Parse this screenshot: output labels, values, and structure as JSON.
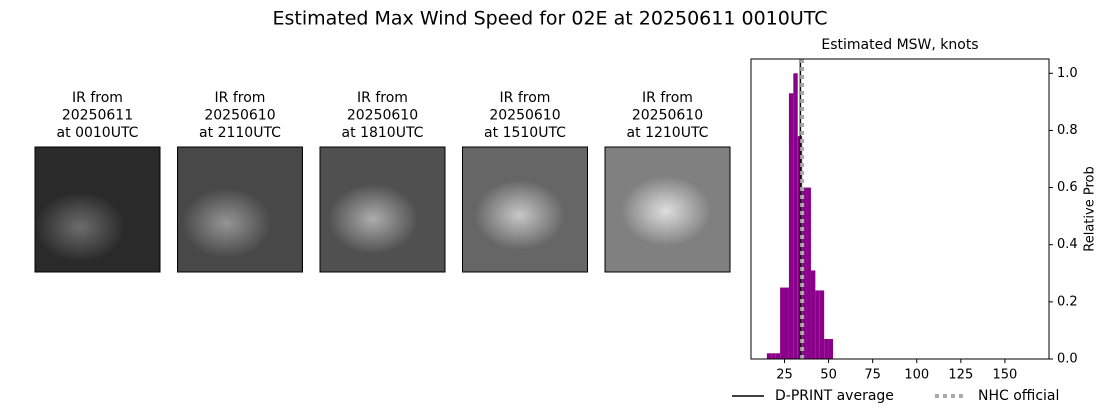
{
  "title": "Estimated Max Wind Speed for 02E at 20250611 0010UTC",
  "panels": [
    {
      "caption": [
        "IR from",
        "20250611",
        "at 0010UTC"
      ]
    },
    {
      "caption": [
        "IR from",
        "20250610",
        "at 2110UTC"
      ]
    },
    {
      "caption": [
        "IR from",
        "20250610",
        "at 1810UTC"
      ]
    },
    {
      "caption": [
        "IR from",
        "20250610",
        "at 1510UTC"
      ]
    },
    {
      "caption": [
        "IR from",
        "20250610",
        "at 1210UTC"
      ]
    }
  ],
  "chart_data": {
    "type": "histogram",
    "title": "Estimated MSW, knots",
    "y_label": "Relative Prob",
    "color": "#8b008b",
    "bins": [
      15,
      17.5,
      20,
      22.5,
      25,
      27.5,
      30,
      32.5,
      35,
      37.5,
      40,
      42.5,
      45,
      47.5,
      50,
      52.5
    ],
    "values": [
      0.02,
      0.02,
      0.02,
      0.25,
      0.25,
      0.93,
      1.0,
      0.78,
      0.6,
      0.6,
      0.31,
      0.24,
      0.24,
      0.07,
      0.07
    ],
    "vlines": [
      {
        "name": "D-PRINT average",
        "value": 34,
        "color": "#000000",
        "style": "solid"
      },
      {
        "name": "NHC official",
        "value": 35,
        "color": "#aaaaaa",
        "style": "dotted"
      }
    ],
    "xlim": [
      6,
      175
    ],
    "ylim": [
      0,
      1.05
    ],
    "xticks": [
      25,
      50,
      75,
      100,
      125,
      150
    ],
    "yticks": [
      {
        "value": 0,
        "label": "0.0"
      },
      0.2,
      0.4,
      0.6,
      0.8,
      {
        "value": 1,
        "label": "1.0"
      }
    ],
    "yaxis_side": "right",
    "legend": "bottom"
  }
}
